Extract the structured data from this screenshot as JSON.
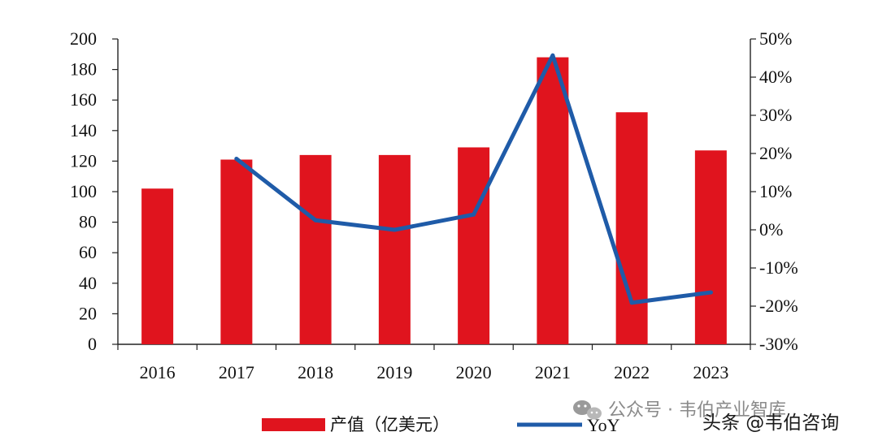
{
  "chart_data": {
    "type": "bar",
    "categories": [
      "2016",
      "2017",
      "2018",
      "2019",
      "2020",
      "2021",
      "2022",
      "2023"
    ],
    "series": [
      {
        "name": "产值（亿美元）",
        "type": "bar",
        "axis": "left",
        "color": "#e0141e",
        "values": [
          102,
          121,
          124,
          124,
          129,
          188,
          152,
          127
        ]
      },
      {
        "name": "YoY",
        "type": "line",
        "axis": "right",
        "color": "#1f5ba8",
        "values": [
          null,
          18.6,
          2.5,
          0.0,
          4.0,
          45.7,
          -19.1,
          -16.4
        ]
      }
    ],
    "ylim": [
      0,
      200
    ],
    "yticks": [
      "0",
      "20",
      "40",
      "60",
      "80",
      "100",
      "120",
      "140",
      "160",
      "180",
      "200"
    ],
    "y2lim": [
      -30,
      50
    ],
    "y2ticks": [
      "-30%",
      "-20%",
      "-10%",
      "0%",
      "10%",
      "20%",
      "30%",
      "40%",
      "50%"
    ],
    "legend_position": "bottom-center",
    "grid": false
  },
  "watermark": {
    "channel": "公众号 · 韦伯产业智库",
    "platform": "头条 @韦伯咨询"
  }
}
